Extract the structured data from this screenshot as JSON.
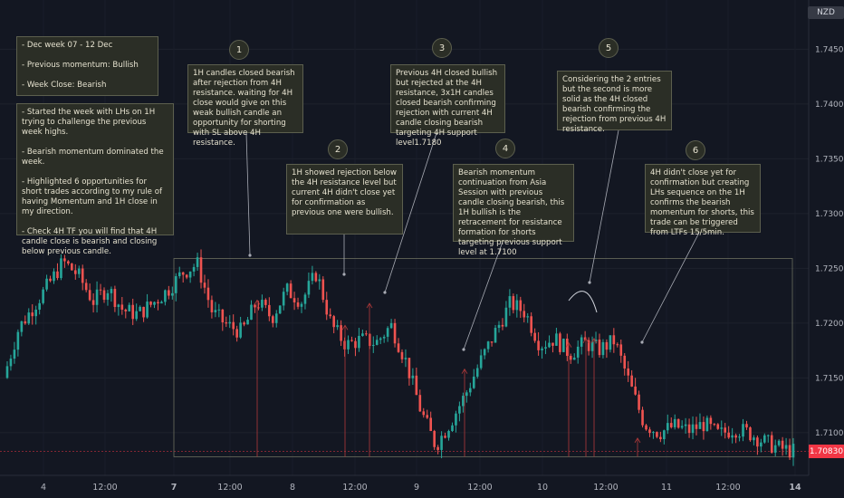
{
  "currency": "NZD",
  "current_price": "1.70830",
  "colors": {
    "bull": "#26a69a",
    "bear": "#ef5350",
    "bg": "#131722",
    "note_bg": "#2b2e26",
    "note_border": "#5c5f4e"
  },
  "summary_note": "- Dec week 07 - 12 Dec\n\n- Previous momentum: Bullish\n\n- Week Close: Bearish",
  "analysis_note": "- Started the week with LHs on 1H trying to challenge the previous week highs.\n\n- Bearish momentum dominated the week.\n\n- Highlighted 6 opportunities for short trades according to my rule of having Momentum and 1H close in my direction.\n\n- Check 4H TF you will find that 4H candle close is bearish and closing below previous candle.",
  "notes": [
    {
      "number": "1",
      "text": "1H candles closed bearish after rejection from 4H resistance. waiting for 4H close would give on this weak bullish candle an opportunity for shorting with SL above 4H resistance."
    },
    {
      "number": "2",
      "text": "1H showed rejection below the 4H resistance level but current 4H didn't close yet for confirmation as previous one were bullish."
    },
    {
      "number": "3",
      "text": "Previous 4H closed bullish but rejected at the 4H resistance, 3x1H candles closed bearish confirming rejection with current 4H candle closing bearish targeting 4H support level1.7180"
    },
    {
      "number": "4",
      "text": "Bearish momentum continuation from Asia Session with previous candle closing bearish, this 1H bullish is the retracement for resistance formation for shorts targeting previous support level at 1.7100"
    },
    {
      "number": "5",
      "text": "Considering the 2 entries but the second is more solid as the 4H closed bearish confirming the rejection from previous 4H resistance."
    },
    {
      "number": "6",
      "text": "4H didn't close yet for confirmation but creating LHs sequence on the 1H confirms the bearish momentum for shorts, this trade can be triggered from LTFs 15/5min."
    }
  ],
  "chart_data": {
    "type": "candlestick",
    "title": "",
    "y_ticks": [
      "1.74500",
      "1.74000",
      "1.73500",
      "1.73000",
      "1.72500",
      "1.72000",
      "1.71500",
      "1.71000"
    ],
    "y_tick_values": [
      1.745,
      1.74,
      1.735,
      1.73,
      1.725,
      1.72,
      1.715,
      1.71
    ],
    "ylim": [
      1.7061,
      1.7495
    ],
    "x_ticks": [
      "4",
      "12:00",
      "7",
      "12:00",
      "8",
      "12:00",
      "9",
      "12:00",
      "10",
      "12:00",
      "11",
      "12:00",
      "14"
    ],
    "bold_x_ticks": [
      "7",
      "14"
    ],
    "box_range": {
      "top": 1.7259,
      "bottom": 1.7078
    },
    "close_path": [
      1.715,
      1.7195,
      1.7215,
      1.7235,
      1.7256,
      1.7244,
      1.722,
      1.7232,
      1.7212,
      1.7208,
      1.7218,
      1.723,
      1.7246,
      1.7254,
      1.721,
      1.7198,
      1.7192,
      1.722,
      1.7205,
      1.723,
      1.722,
      1.7246,
      1.7198,
      1.718,
      1.7185,
      1.7182,
      1.7198,
      1.7165,
      1.712,
      1.7088,
      1.711,
      1.7135,
      1.7165,
      1.7192,
      1.7218,
      1.721,
      1.718,
      1.7186,
      1.7172,
      1.7182,
      1.7176,
      1.7184,
      1.7145,
      1.7108,
      1.71,
      1.7106,
      1.7102,
      1.7108,
      1.7098,
      1.7104,
      1.71,
      1.7092,
      1.7086,
      1.7083
    ],
    "candle_count": 220,
    "entry_markers": [
      1.7221,
      1.7198,
      1.7218,
      1.7158,
      1.7182,
      1.7186,
      1.7186,
      1.7095
    ]
  }
}
